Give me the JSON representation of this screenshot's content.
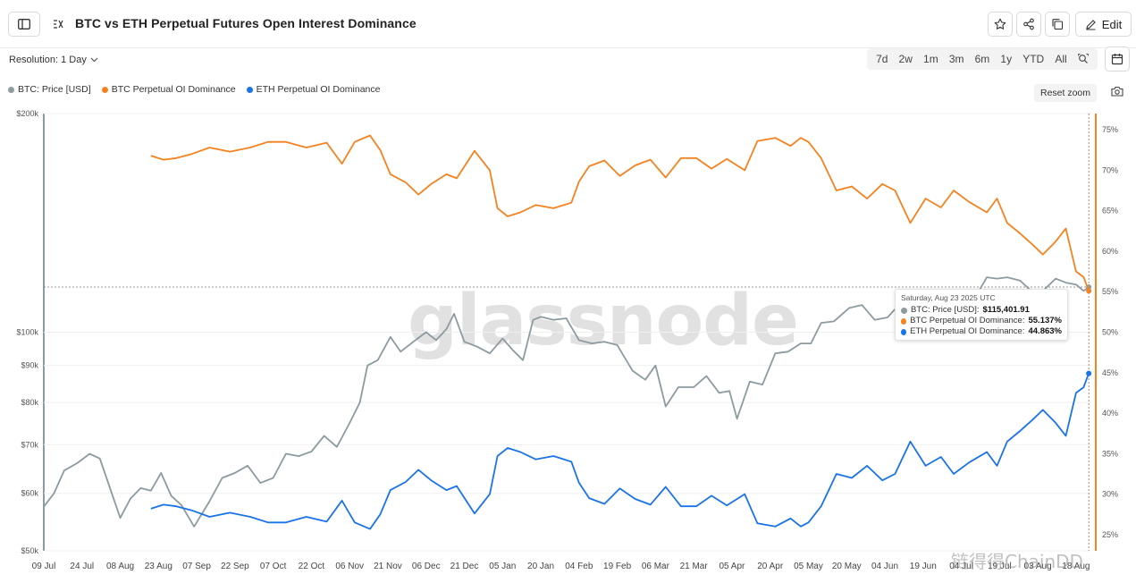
{
  "header": {
    "title": "BTC vs ETH Perpetual Futures Open Interest Dominance",
    "edit_label": "Edit"
  },
  "controls": {
    "resolution_label": "Resolution: 1 Day",
    "ranges": [
      "7d",
      "2w",
      "1m",
      "3m",
      "6m",
      "1y",
      "YTD",
      "All"
    ],
    "reset_zoom_label": "Reset zoom"
  },
  "watermark": "glassnode",
  "corner_watermark": "链得得ChainDD",
  "tooltip": {
    "date": "Saturday, Aug 23 2025 UTC",
    "rows": [
      {
        "label": "BTC: Price [USD]:",
        "value": "$115,401.91",
        "color": "#8c9ba0"
      },
      {
        "label": "BTC Perpetual OI Dominance:",
        "value": "55.137%",
        "color": "#f5821f"
      },
      {
        "label": "ETH Perpetual OI Dominance:",
        "value": "44.863%",
        "color": "#1a73e8"
      }
    ]
  },
  "chart_data": {
    "type": "line",
    "title": "BTC vs ETH Perpetual Futures Open Interest Dominance",
    "x_tick_labels": [
      "09 Jul",
      "24 Jul",
      "08 Aug",
      "23 Aug",
      "07 Sep",
      "22 Sep",
      "07 Oct",
      "22 Oct",
      "06 Nov",
      "21 Nov",
      "06 Dec",
      "21 Dec",
      "05 Jan",
      "20 Jan",
      "04 Feb",
      "19 Feb",
      "06 Mar",
      "21 Mar",
      "05 Apr",
      "20 Apr",
      "05 May",
      "20 May",
      "04 Jun",
      "19 Jun",
      "04 Jul",
      "19 Jul",
      "03 Aug",
      "18 Aug"
    ],
    "x_range": [
      "2024-07-09",
      "2025-08-24"
    ],
    "y_left": {
      "scale": "log",
      "range": [
        50000,
        200000
      ],
      "tick_labels": [
        "$50k",
        "$60k",
        "$70k",
        "$80k",
        "$90k",
        "$100k",
        "$200k"
      ],
      "tick_values": [
        50000,
        60000,
        70000,
        80000,
        90000,
        100000,
        200000
      ]
    },
    "y_right": {
      "range": [
        23,
        77
      ],
      "tick_labels": [
        "25%",
        "30%",
        "35%",
        "40%",
        "45%",
        "50%",
        "55%",
        "60%",
        "65%",
        "70%",
        "75%"
      ],
      "tick_values": [
        25,
        30,
        35,
        40,
        45,
        50,
        55,
        60,
        65,
        70,
        75
      ]
    },
    "legend_position": "top-left",
    "series": [
      {
        "name": "BTC: Price [USD]",
        "axis": "left",
        "color": "#8c9ba0",
        "x": [
          "2024-07-09",
          "2024-07-13",
          "2024-07-17",
          "2024-07-22",
          "2024-07-27",
          "2024-07-31",
          "2024-08-04",
          "2024-08-08",
          "2024-08-12",
          "2024-08-16",
          "2024-08-20",
          "2024-08-24",
          "2024-08-28",
          "2024-09-01",
          "2024-09-06",
          "2024-09-12",
          "2024-09-17",
          "2024-09-22",
          "2024-09-27",
          "2024-10-02",
          "2024-10-07",
          "2024-10-12",
          "2024-10-17",
          "2024-10-22",
          "2024-10-27",
          "2024-11-01",
          "2024-11-06",
          "2024-11-10",
          "2024-11-13",
          "2024-11-17",
          "2024-11-22",
          "2024-11-26",
          "2024-12-01",
          "2024-12-06",
          "2024-12-10",
          "2024-12-14",
          "2024-12-17",
          "2024-12-21",
          "2024-12-26",
          "2024-12-31",
          "2025-01-05",
          "2025-01-09",
          "2025-01-13",
          "2025-01-17",
          "2025-01-20",
          "2025-01-25",
          "2025-01-30",
          "2025-02-04",
          "2025-02-09",
          "2025-02-14",
          "2025-02-19",
          "2025-02-25",
          "2025-03-02",
          "2025-03-06",
          "2025-03-10",
          "2025-03-15",
          "2025-03-21",
          "2025-03-26",
          "2025-03-31",
          "2025-04-04",
          "2025-04-07",
          "2025-04-12",
          "2025-04-17",
          "2025-04-22",
          "2025-04-27",
          "2025-05-02",
          "2025-05-06",
          "2025-05-10",
          "2025-05-15",
          "2025-05-21",
          "2025-05-26",
          "2025-05-31",
          "2025-06-05",
          "2025-06-10",
          "2025-06-15",
          "2025-06-20",
          "2025-06-25",
          "2025-06-30",
          "2025-07-04",
          "2025-07-09",
          "2025-07-14",
          "2025-07-18",
          "2025-07-22",
          "2025-07-27",
          "2025-08-01",
          "2025-08-05",
          "2025-08-10",
          "2025-08-14",
          "2025-08-18",
          "2025-08-21",
          "2025-08-23"
        ],
        "y": [
          57500,
          60000,
          64500,
          66000,
          68000,
          67000,
          61000,
          55500,
          59000,
          61000,
          60500,
          64000,
          59500,
          57800,
          54000,
          58500,
          63000,
          64000,
          65500,
          62000,
          63000,
          68000,
          67500,
          68500,
          72000,
          69500,
          75000,
          80000,
          90000,
          91500,
          98500,
          94000,
          97000,
          100000,
          97500,
          101000,
          106000,
          97000,
          95500,
          93500,
          98000,
          94500,
          91500,
          104000,
          105000,
          104000,
          104500,
          97500,
          96500,
          97000,
          96000,
          88500,
          86000,
          90000,
          79000,
          84000,
          84000,
          87000,
          82500,
          83000,
          76000,
          85500,
          84700,
          93500,
          94000,
          96500,
          96500,
          103000,
          103500,
          108000,
          109000,
          104000,
          104800,
          109500,
          105500,
          103500,
          107000,
          107500,
          109500,
          111000,
          119000,
          118500,
          119000,
          117800,
          113500,
          114000,
          118500,
          117000,
          116300,
          114000,
          115402
        ]
      },
      {
        "name": "BTC Perpetual OI Dominance",
        "axis": "right",
        "color": "#f5821f",
        "x": [
          "2024-08-20",
          "2024-08-25",
          "2024-08-30",
          "2024-09-05",
          "2024-09-12",
          "2024-09-20",
          "2024-09-28",
          "2024-10-05",
          "2024-10-12",
          "2024-10-20",
          "2024-10-28",
          "2024-11-03",
          "2024-11-08",
          "2024-11-14",
          "2024-11-18",
          "2024-11-22",
          "2024-11-28",
          "2024-12-03",
          "2024-12-08",
          "2024-12-14",
          "2024-12-18",
          "2024-12-25",
          "2024-12-31",
          "2025-01-03",
          "2025-01-07",
          "2025-01-12",
          "2025-01-18",
          "2025-01-25",
          "2025-02-01",
          "2025-02-04",
          "2025-02-08",
          "2025-02-14",
          "2025-02-20",
          "2025-02-26",
          "2025-03-04",
          "2025-03-10",
          "2025-03-16",
          "2025-03-22",
          "2025-03-28",
          "2025-04-03",
          "2025-04-10",
          "2025-04-15",
          "2025-04-22",
          "2025-04-28",
          "2025-05-02",
          "2025-05-05",
          "2025-05-10",
          "2025-05-16",
          "2025-05-22",
          "2025-05-28",
          "2025-06-03",
          "2025-06-08",
          "2025-06-14",
          "2025-06-20",
          "2025-06-26",
          "2025-07-01",
          "2025-07-07",
          "2025-07-14",
          "2025-07-18",
          "2025-07-22",
          "2025-07-27",
          "2025-08-01",
          "2025-08-05",
          "2025-08-10",
          "2025-08-14",
          "2025-08-18",
          "2025-08-21",
          "2025-08-23"
        ],
        "y": [
          71.8,
          71.3,
          71.5,
          72,
          72.8,
          72.3,
          72.8,
          73.5,
          73.5,
          72.8,
          73.4,
          70.8,
          73.5,
          74.3,
          72.5,
          69.5,
          68.5,
          67,
          68.3,
          69.5,
          69,
          72.4,
          70,
          65.3,
          64.3,
          64.8,
          65.7,
          65.3,
          66,
          68.6,
          70.5,
          71.2,
          69.3,
          70.6,
          71.3,
          69.1,
          71.5,
          71.5,
          70.2,
          71.4,
          70,
          73.6,
          74,
          73,
          74,
          73.5,
          71.5,
          67.5,
          68,
          66.5,
          68.3,
          67.5,
          63.5,
          66.5,
          65.4,
          67.5,
          66.1,
          64.8,
          66.5,
          63.5,
          62.2,
          60.8,
          59.6,
          61.2,
          62.8,
          57.5,
          56.8,
          55.1
        ]
      },
      {
        "name": "ETH Perpetual OI Dominance",
        "axis": "right",
        "color": "#1a73e8",
        "x": [
          "2024-08-20",
          "2024-08-25",
          "2024-08-30",
          "2024-09-05",
          "2024-09-12",
          "2024-09-20",
          "2024-09-28",
          "2024-10-05",
          "2024-10-12",
          "2024-10-20",
          "2024-10-28",
          "2024-11-03",
          "2024-11-08",
          "2024-11-14",
          "2024-11-18",
          "2024-11-22",
          "2024-11-28",
          "2024-12-03",
          "2024-12-08",
          "2024-12-14",
          "2024-12-18",
          "2024-12-25",
          "2024-12-31",
          "2025-01-03",
          "2025-01-07",
          "2025-01-12",
          "2025-01-18",
          "2025-01-25",
          "2025-02-01",
          "2025-02-04",
          "2025-02-08",
          "2025-02-14",
          "2025-02-20",
          "2025-02-26",
          "2025-03-04",
          "2025-03-10",
          "2025-03-16",
          "2025-03-22",
          "2025-03-28",
          "2025-04-03",
          "2025-04-10",
          "2025-04-15",
          "2025-04-22",
          "2025-04-28",
          "2025-05-02",
          "2025-05-05",
          "2025-05-10",
          "2025-05-16",
          "2025-05-22",
          "2025-05-28",
          "2025-06-03",
          "2025-06-08",
          "2025-06-14",
          "2025-06-20",
          "2025-06-26",
          "2025-07-01",
          "2025-07-07",
          "2025-07-14",
          "2025-07-18",
          "2025-07-22",
          "2025-07-27",
          "2025-08-01",
          "2025-08-05",
          "2025-08-10",
          "2025-08-14",
          "2025-08-18",
          "2025-08-21",
          "2025-08-23"
        ],
        "y": [
          28.2,
          28.7,
          28.5,
          28,
          27.2,
          27.7,
          27.2,
          26.5,
          26.5,
          27.2,
          26.6,
          29.2,
          26.5,
          25.7,
          27.5,
          30.5,
          31.5,
          33,
          31.7,
          30.5,
          31,
          27.6,
          30,
          34.7,
          35.7,
          35.2,
          34.3,
          34.7,
          34,
          31.4,
          29.5,
          28.8,
          30.7,
          29.4,
          28.7,
          30.9,
          28.5,
          28.5,
          29.8,
          28.6,
          30,
          26.4,
          26,
          27,
          26,
          26.5,
          28.5,
          32.5,
          32,
          33.5,
          31.7,
          32.5,
          36.5,
          33.5,
          34.6,
          32.5,
          33.9,
          35.2,
          33.5,
          36.5,
          37.8,
          39.2,
          40.4,
          38.8,
          37.2,
          42.5,
          43.2,
          44.9
        ]
      }
    ]
  }
}
